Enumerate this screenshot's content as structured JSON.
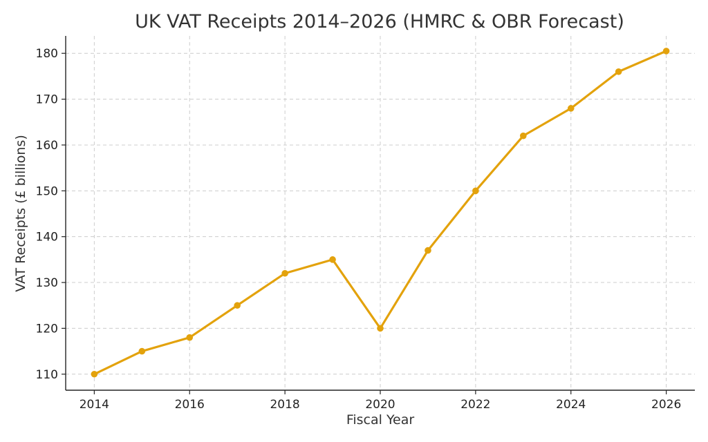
{
  "chart_data": {
    "type": "line",
    "title": "UK VAT Receipts 2014–2026 (HMRC & OBR Forecast)",
    "xlabel": "Fiscal Year",
    "ylabel": "VAT Receipts (£ billions)",
    "x": [
      2014,
      2015,
      2016,
      2017,
      2018,
      2019,
      2020,
      2021,
      2022,
      2023,
      2024,
      2025,
      2026
    ],
    "series": [
      {
        "values": [
          110,
          115,
          118,
          125,
          132,
          135,
          120,
          137,
          150,
          162,
          168,
          176,
          180.5
        ],
        "color": "#e3a20c"
      }
    ],
    "xticks": [
      2014,
      2016,
      2018,
      2020,
      2022,
      2024,
      2026
    ],
    "yticks": [
      110,
      120,
      130,
      140,
      150,
      160,
      170,
      180
    ],
    "xlim": [
      2013.4,
      2026.6
    ],
    "ylim": [
      106.5,
      183.8
    ],
    "grid": true,
    "marker": "circle",
    "axis_color": "#222222",
    "grid_color": "#cccccc"
  }
}
